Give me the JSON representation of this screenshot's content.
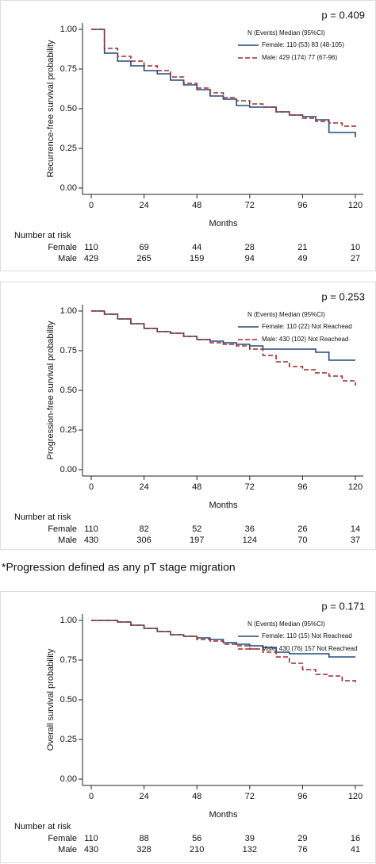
{
  "chart_data": [
    {
      "type": "line",
      "step": true,
      "annotation": "p = 0.409",
      "ylabel": "Recurrence-free survival probability",
      "xlabel": "Months",
      "legend_title": "N (Events) Median (95%CI)",
      "legend": "upper right",
      "x": [
        0,
        6,
        12,
        18,
        24,
        30,
        36,
        42,
        48,
        54,
        60,
        66,
        72,
        78,
        84,
        90,
        96,
        102,
        108,
        114,
        120
      ],
      "series": [
        {
          "name": "Female: 110 (53) 83 (48-105)",
          "color": "#22497a",
          "line_style": "solid",
          "values": [
            1.0,
            0.85,
            0.8,
            0.77,
            0.74,
            0.72,
            0.68,
            0.65,
            0.62,
            0.58,
            0.56,
            0.52,
            0.51,
            0.51,
            0.48,
            0.46,
            0.45,
            0.43,
            0.35,
            0.35,
            0.32
          ]
        },
        {
          "name": "Male: 429 (174) 77 (67-96)",
          "color": "#9e2a2b",
          "line_style": "dashed",
          "values": [
            1.0,
            0.88,
            0.83,
            0.8,
            0.77,
            0.74,
            0.7,
            0.66,
            0.63,
            0.6,
            0.57,
            0.55,
            0.53,
            0.51,
            0.48,
            0.46,
            0.44,
            0.42,
            0.41,
            0.39,
            0.38
          ]
        }
      ],
      "xlim": [
        0,
        120
      ],
      "xticks": [
        0,
        24,
        48,
        72,
        96,
        120
      ],
      "ylim": [
        0,
        1
      ],
      "yticks": [
        {
          "value": 0,
          "label": "0.00"
        },
        {
          "value": 0.25,
          "label": "0.25"
        },
        {
          "value": 0.5,
          "label": "0.50"
        },
        {
          "value": 0.75,
          "label": "0.75"
        },
        {
          "value": 1,
          "label": "1.00"
        }
      ],
      "risk_table": {
        "title": "Number at risk",
        "rows": [
          {
            "name": "Female",
            "values": [
              110,
              69,
              44,
              28,
              21,
              10
            ]
          },
          {
            "name": "Male",
            "values": [
              429,
              265,
              159,
              94,
              49,
              27
            ]
          }
        ]
      }
    },
    {
      "type": "line",
      "step": true,
      "annotation": "p = 0.253",
      "ylabel": "Progression-free survival probability",
      "xlabel": "Months",
      "legend_title": "N (Events) Median (95%CI)",
      "legend": "upper right",
      "x": [
        0,
        6,
        12,
        18,
        24,
        30,
        36,
        42,
        48,
        54,
        60,
        66,
        72,
        78,
        84,
        90,
        96,
        102,
        108,
        114,
        120
      ],
      "series": [
        {
          "name": "Female: 110 (22) Not Reachead",
          "color": "#22497a",
          "line_style": "solid",
          "values": [
            1.0,
            0.98,
            0.95,
            0.92,
            0.89,
            0.87,
            0.86,
            0.84,
            0.82,
            0.81,
            0.8,
            0.79,
            0.78,
            0.76,
            0.76,
            0.76,
            0.76,
            0.74,
            0.69,
            0.69,
            0.69
          ]
        },
        {
          "name": "Male: 430 (102) Not Reachead",
          "color": "#9e2a2b",
          "line_style": "dashed",
          "values": [
            1.0,
            0.98,
            0.95,
            0.92,
            0.89,
            0.87,
            0.86,
            0.84,
            0.82,
            0.8,
            0.79,
            0.78,
            0.76,
            0.72,
            0.68,
            0.65,
            0.63,
            0.61,
            0.59,
            0.56,
            0.53
          ]
        }
      ],
      "xlim": [
        0,
        120
      ],
      "xticks": [
        0,
        24,
        48,
        72,
        96,
        120
      ],
      "ylim": [
        0,
        1
      ],
      "yticks": [
        {
          "value": 0,
          "label": "0.00"
        },
        {
          "value": 0.25,
          "label": "0.25"
        },
        {
          "value": 0.5,
          "label": "0.50"
        },
        {
          "value": 0.75,
          "label": "0.75"
        },
        {
          "value": 1,
          "label": "1.00"
        }
      ],
      "risk_table": {
        "title": "Number at risk",
        "rows": [
          {
            "name": "Female",
            "values": [
              110,
              82,
              52,
              36,
              26,
              14
            ]
          },
          {
            "name": "Male",
            "values": [
              430,
              306,
              197,
              124,
              70,
              37
            ]
          }
        ]
      }
    },
    {
      "type": "line",
      "step": true,
      "annotation": "p = 0.171",
      "ylabel": "Overall survival probability",
      "xlabel": "Months",
      "legend_title": "N (Events) Median (95%CI)",
      "legend": "upper right",
      "x": [
        0,
        6,
        12,
        18,
        24,
        30,
        36,
        42,
        48,
        54,
        60,
        66,
        72,
        78,
        84,
        90,
        96,
        102,
        108,
        114,
        120
      ],
      "series": [
        {
          "name": "Female: 110 (15) Not Reachead",
          "color": "#22497a",
          "line_style": "solid",
          "values": [
            1.0,
            1.0,
            0.99,
            0.97,
            0.95,
            0.93,
            0.91,
            0.9,
            0.89,
            0.88,
            0.86,
            0.85,
            0.84,
            0.83,
            0.8,
            0.79,
            0.79,
            0.79,
            0.77,
            0.77,
            0.77
          ]
        },
        {
          "name": "Male: 430 (76) 157 Not Reachead",
          "color": "#9e2a2b",
          "line_style": "dashed",
          "values": [
            1.0,
            1.0,
            0.99,
            0.97,
            0.95,
            0.93,
            0.91,
            0.9,
            0.88,
            0.87,
            0.85,
            0.84,
            0.82,
            0.8,
            0.77,
            0.73,
            0.69,
            0.66,
            0.65,
            0.62,
            0.6
          ]
        }
      ],
      "xlim": [
        0,
        120
      ],
      "xticks": [
        0,
        24,
        48,
        72,
        96,
        120
      ],
      "ylim": [
        0,
        1
      ],
      "yticks": [
        {
          "value": 0,
          "label": "0.00"
        },
        {
          "value": 0.25,
          "label": "0.25"
        },
        {
          "value": 0.5,
          "label": "0.50"
        },
        {
          "value": 0.75,
          "label": "0.75"
        },
        {
          "value": 1,
          "label": "1.00"
        }
      ],
      "risk_table": {
        "title": "Number at risk",
        "rows": [
          {
            "name": "Female",
            "values": [
              110,
              88,
              56,
              39,
              29,
              16
            ]
          },
          {
            "name": "Male",
            "values": [
              430,
              328,
              210,
              132,
              76,
              41
            ]
          }
        ]
      }
    }
  ],
  "caption": "*Progression defined as any pT stage migration"
}
